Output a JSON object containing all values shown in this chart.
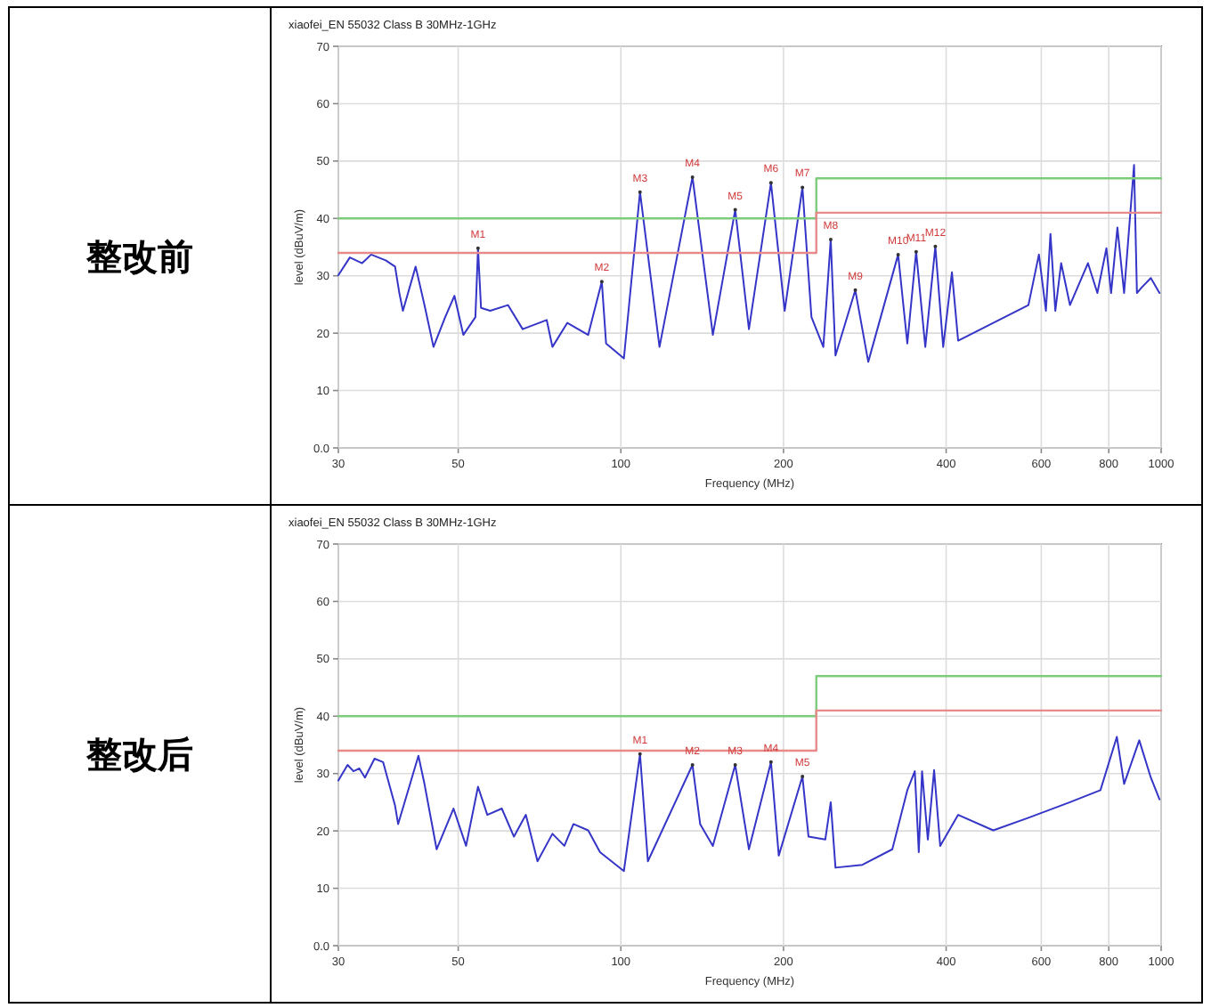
{
  "chart_data": [
    {
      "type": "line",
      "title": "xiaofei_EN 55032 Class B 30MHz-1GHz",
      "xlabel": "Frequency (MHz)",
      "ylabel": "level (dBuV/m)",
      "log": "x",
      "grid": true,
      "xlim": [
        30,
        1000
      ],
      "ylim": [
        0,
        70
      ],
      "xticks": [
        30,
        50,
        100,
        200,
        400,
        600,
        800,
        1000
      ],
      "yticks": [
        {
          "value": 0,
          "label": "0.0"
        },
        10,
        20,
        30,
        40,
        50,
        60,
        70
      ],
      "series": [
        {
          "type": "line",
          "color": "#3535c8",
          "x": [
            30,
            31.5,
            33.2,
            34.5,
            36.7,
            38.2,
            38.9,
            39.5,
            41.7,
            43.3,
            45,
            47.3,
            49.2,
            51.1,
            53.8,
            54.4,
            55.1,
            57.3,
            61.8,
            65.8,
            72.9,
            74.7,
            79.6,
            87,
            92.2,
            93.9,
            101.3,
            108.5,
            117.9,
            135.7,
            148,
            162.8,
            172.6,
            189.6,
            201,
            216.8,
            225.3,
            237,
            244.6,
            249.6,
            271.6,
            287,
            326,
            339,
            352,
            366,
            382,
            395,
            410,
            421,
            489,
            568,
            594,
            612,
            624,
            637,
            653,
            678,
            732,
            762,
            792,
            808,
            830,
            854,
            891,
            902,
            921,
            957,
            993
          ],
          "values": [
            30.1,
            33.2,
            32.2,
            33.7,
            32.7,
            31.6,
            27,
            23.9,
            31.6,
            24.9,
            17.6,
            22.8,
            26.5,
            19.7,
            22.8,
            34.8,
            24.4,
            23.9,
            24.9,
            20.7,
            22.3,
            17.6,
            21.8,
            19.7,
            29,
            18.2,
            15.6,
            44.6,
            17.6,
            47.2,
            19.7,
            41.5,
            20.7,
            46.2,
            23.9,
            45.4,
            22.8,
            17.6,
            36.3,
            16.1,
            27.5,
            15,
            33.7,
            18.2,
            34.2,
            17.6,
            35.1,
            17.6,
            30.6,
            18.7,
            21.8,
            24.9,
            33.7,
            23.9,
            37.3,
            23.9,
            32.2,
            24.9,
            32.2,
            27,
            34.8,
            27,
            38.4,
            27,
            49.3,
            27,
            28,
            29.6,
            27
          ]
        },
        {
          "type": "step",
          "color": "#7ccc7c",
          "x": [
            30,
            230,
            1000
          ],
          "values": [
            40,
            47,
            47
          ]
        },
        {
          "type": "step",
          "color": "#e88a8a",
          "x": [
            30,
            230,
            1000
          ],
          "values": [
            34,
            41,
            41
          ]
        }
      ],
      "annotations": [
        "整改前",
        {
          "text": "M1",
          "x": 54.4,
          "y": 34.8
        },
        {
          "text": "M2",
          "x": 92.2,
          "y": 29
        },
        {
          "text": "M3",
          "x": 108.5,
          "y": 44.6
        },
        {
          "text": "M4",
          "x": 135.7,
          "y": 47.2
        },
        {
          "text": "M5",
          "x": 162.8,
          "y": 41.5
        },
        {
          "text": "M6",
          "x": 189.6,
          "y": 46.2
        },
        {
          "text": "M7",
          "x": 216.8,
          "y": 45.4
        },
        {
          "text": "M8",
          "x": 244.6,
          "y": 36.3
        },
        {
          "text": "M9",
          "x": 271.6,
          "y": 27.5
        },
        {
          "text": "M10",
          "x": 326,
          "y": 33.7
        },
        {
          "text": "M11",
          "x": 352,
          "y": 34.2
        },
        {
          "text": "M12",
          "x": 382,
          "y": 35.1
        }
      ]
    },
    {
      "type": "line",
      "title": "xiaofei_EN 55032 Class B 30MHz-1GHz",
      "xlabel": "Frequency (MHz)",
      "ylabel": "level (dBuV/m)",
      "log": "x",
      "grid": true,
      "xlim": [
        30,
        1000
      ],
      "ylim": [
        0,
        70
      ],
      "xticks": [
        30,
        50,
        100,
        200,
        400,
        600,
        800,
        1000
      ],
      "yticks": [
        {
          "value": 0,
          "label": "0.0"
        },
        10,
        20,
        30,
        40,
        50,
        60,
        70
      ],
      "series": [
        {
          "type": "line",
          "color": "#3535c8",
          "x": [
            30,
            31.2,
            32,
            32.8,
            33.6,
            35,
            36.3,
            38.2,
            38.7,
            42.2,
            43.3,
            45.6,
            49,
            51.7,
            54.4,
            56.6,
            60.2,
            63.4,
            66.7,
            70.1,
            74.7,
            78.6,
            81.7,
            87,
            91.5,
            101.3,
            108.5,
            112.2,
            135.7,
            140.2,
            148,
            162.8,
            172.6,
            189.6,
            196,
            216.8,
            222.5,
            239,
            244.6,
            249.6,
            280,
            318,
            339,
            350,
            356,
            361,
            370,
            380,
            390,
            421,
            489,
            568,
            678,
            772,
            828,
            854,
            911,
            957,
            993
          ],
          "values": [
            28.8,
            31.5,
            30.4,
            30.9,
            29.3,
            32.6,
            32,
            24.4,
            21.2,
            33.1,
            28.2,
            16.8,
            23.9,
            17.4,
            27.7,
            22.8,
            23.9,
            19,
            22.8,
            14.7,
            19.5,
            17.4,
            21.2,
            20.1,
            16.3,
            13,
            33.4,
            14.7,
            31.5,
            21.2,
            17.4,
            31.5,
            16.8,
            32,
            15.7,
            29.5,
            19,
            18.5,
            25,
            13.6,
            14.1,
            16.8,
            27.1,
            30.4,
            16.3,
            30.4,
            18.5,
            30.6,
            17.4,
            22.8,
            20.1,
            22.3,
            25,
            27.1,
            36.4,
            28.2,
            35.8,
            29.3,
            25.5
          ]
        },
        {
          "type": "step",
          "color": "#7ccc7c",
          "x": [
            30,
            230,
            1000
          ],
          "values": [
            40,
            47,
            47
          ]
        },
        {
          "type": "step",
          "color": "#e88a8a",
          "x": [
            30,
            230,
            1000
          ],
          "values": [
            34,
            41,
            41
          ]
        }
      ],
      "annotations": [
        "整改后",
        {
          "text": "M1",
          "x": 108.5,
          "y": 33.4
        },
        {
          "text": "M2",
          "x": 135.7,
          "y": 31.5
        },
        {
          "text": "M3",
          "x": 162.8,
          "y": 31.5
        },
        {
          "text": "M4",
          "x": 189.6,
          "y": 32
        },
        {
          "text": "M5",
          "x": 216.8,
          "y": 29.5
        }
      ]
    }
  ]
}
